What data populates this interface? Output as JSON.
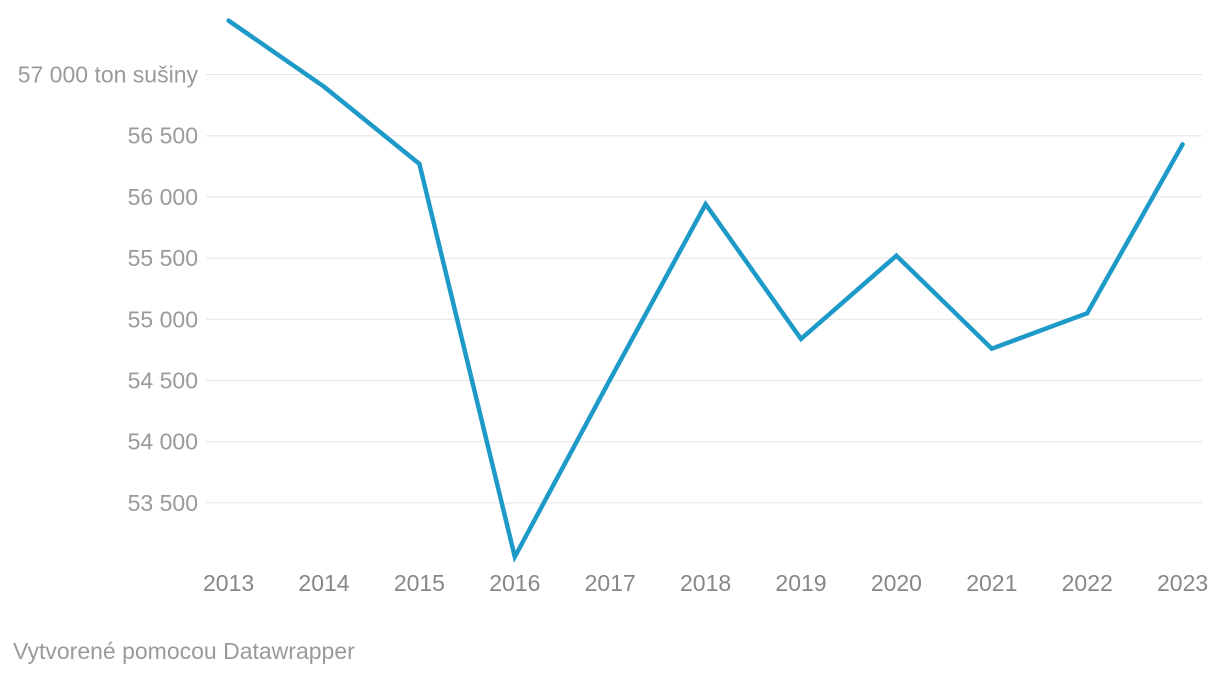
{
  "chart_data": {
    "type": "line",
    "categories": [
      "2013",
      "2014",
      "2015",
      "2016",
      "2017",
      "2018",
      "2019",
      "2020",
      "2021",
      "2022",
      "2023"
    ],
    "series": [
      {
        "name": "ton sušiny",
        "values": [
          57440,
          56900,
          56270,
          53060,
          54510,
          55940,
          54840,
          55520,
          54760,
          55050,
          56430
        ]
      }
    ],
    "unit": "ton sušiny",
    "yticks": [
      57000,
      56500,
      56000,
      55500,
      55000,
      54500,
      54000,
      53500
    ],
    "ytick_labels": [
      "57 000 ton sušiny",
      "56 500",
      "56 000",
      "55 500",
      "55 000",
      "54 500",
      "54 000",
      "53 500"
    ],
    "ylim": [
      52900,
      57500
    ],
    "grid": "horizontal",
    "legend": "none"
  },
  "footer": {
    "attribution": "Vytvorené pomocou Datawrapper"
  },
  "colors": {
    "line": "#1E9AC9",
    "grid": "#e5e5e5",
    "y_tick_text": "#9a9a9a",
    "x_tick_text": "#878787",
    "footer_text": "#9a9a9a",
    "background": "#ffffff"
  }
}
